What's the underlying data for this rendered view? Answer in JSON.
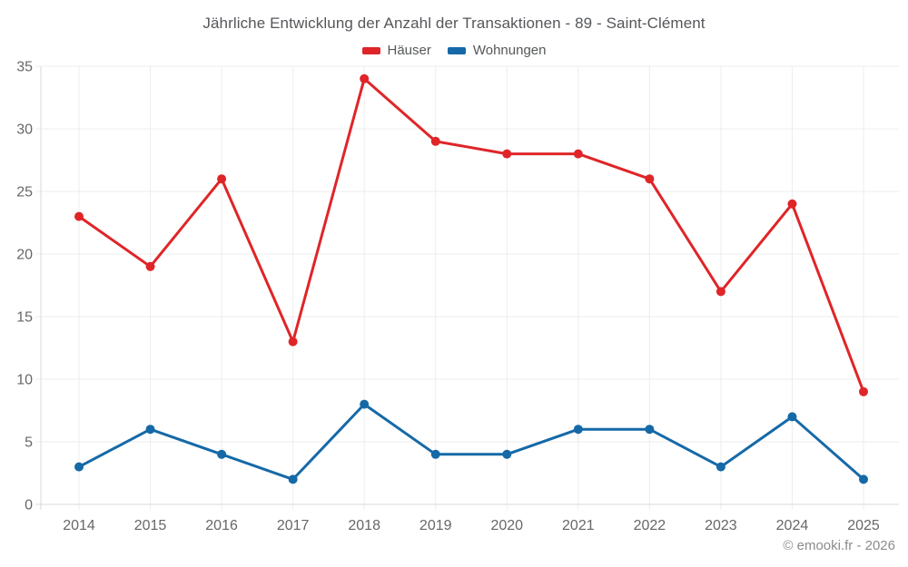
{
  "title": "Jährliche Entwicklung der Anzahl der Transaktionen - 89 - Saint-Clément",
  "legend": [
    {
      "label": "Häuser",
      "color": "#df2528"
    },
    {
      "label": "Wohnungen",
      "color": "#1569a7"
    }
  ],
  "footer": {
    "copyright": "© emooki.fr - 2026"
  },
  "colors": {
    "background": "#ffffff",
    "grid": "#ededed",
    "axis": "#d9d9d9",
    "tick_label": "#666769",
    "title": "#55575b",
    "copyright": "#8a8c8e"
  },
  "chart_data": {
    "type": "line",
    "title": "Jährliche Entwicklung der Anzahl der Transaktionen - 89 - Saint-Clément",
    "categories": [
      "2014",
      "2015",
      "2016",
      "2017",
      "2018",
      "2019",
      "2020",
      "2021",
      "2022",
      "2023",
      "2024",
      "2025"
    ],
    "series": [
      {
        "name": "Häuser",
        "color": "#df2528",
        "values": [
          23,
          19,
          26,
          13,
          34,
          29,
          28,
          28,
          26,
          17,
          24,
          9
        ]
      },
      {
        "name": "Wohnungen",
        "color": "#1569a7",
        "values": [
          3,
          6,
          4,
          2,
          8,
          4,
          4,
          6,
          6,
          3,
          7,
          2
        ]
      }
    ],
    "xlabel": "",
    "ylabel": "",
    "ylim": [
      0,
      35
    ],
    "yticks": [
      0,
      5,
      10,
      15,
      20,
      25,
      30,
      35
    ],
    "grid": true,
    "legend_position": "top",
    "marker": "circle",
    "marker_radius": 5,
    "line_width": 3
  }
}
